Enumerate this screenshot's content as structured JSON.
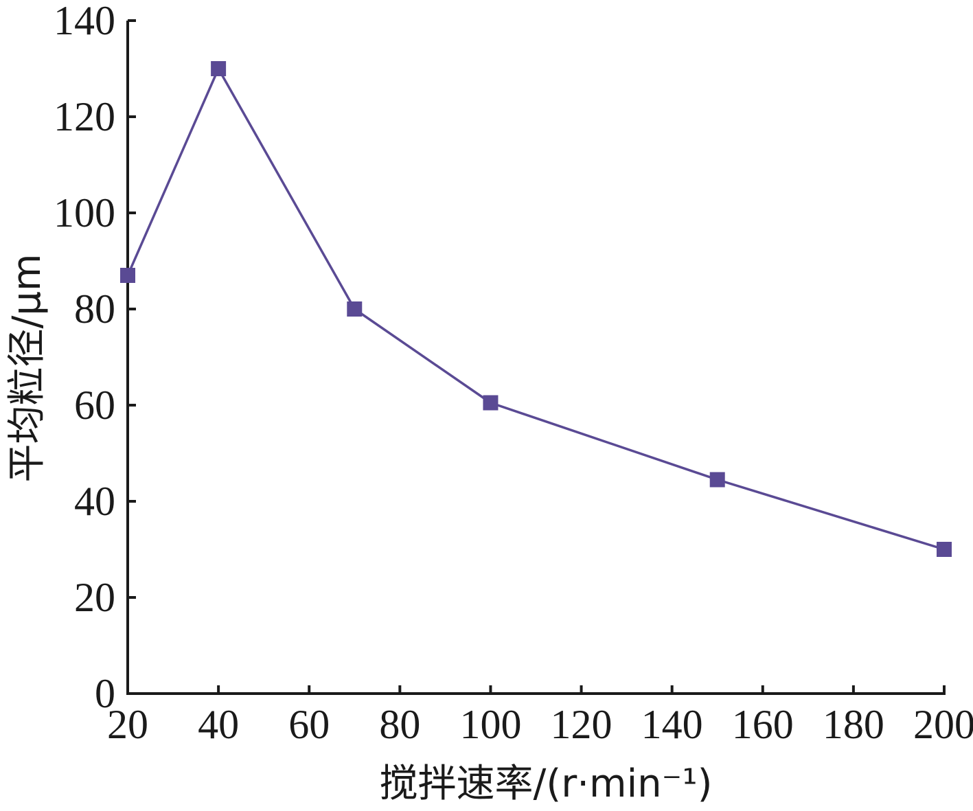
{
  "chart_data": {
    "type": "line",
    "xlabel": "搅拌速率/(r·min⁻¹)",
    "ylabel": "平均粒径/μm",
    "xlim": [
      20,
      200
    ],
    "ylim": [
      0,
      140
    ],
    "xticks": [
      20,
      40,
      60,
      80,
      100,
      120,
      140,
      160,
      180,
      200
    ],
    "yticks": [
      0,
      20,
      40,
      60,
      80,
      100,
      120,
      140
    ],
    "grid": false,
    "series": [
      {
        "x": [
          20,
          40,
          70,
          100,
          150,
          200
        ],
        "values": [
          87,
          130,
          80,
          60.5,
          44.5,
          30
        ]
      }
    ],
    "colors": {
      "series": "#5a4a94",
      "axis": "#1a1a1a"
    },
    "marker": "square"
  }
}
